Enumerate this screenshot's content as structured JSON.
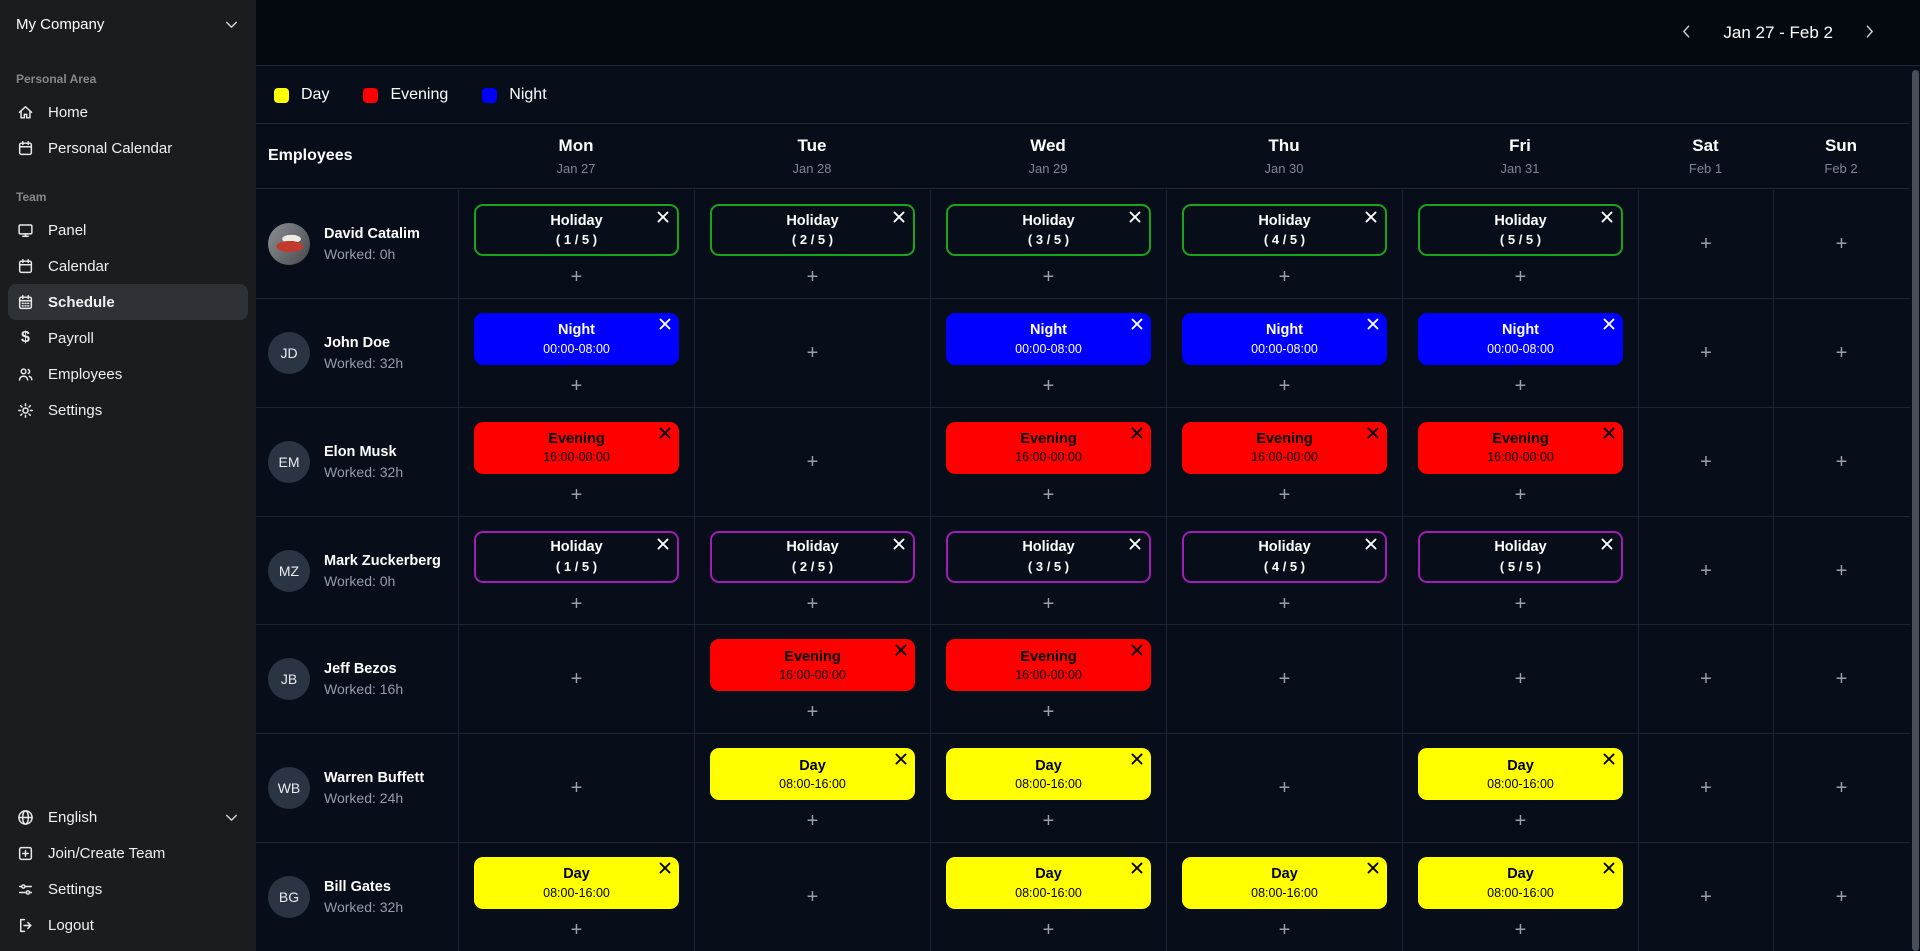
{
  "sidebar": {
    "company": {
      "label": "My Company",
      "icon": "chevron-down-icon"
    },
    "sections": [
      {
        "label": "Personal Area",
        "items": [
          {
            "label": "Home",
            "icon": "home-icon",
            "active": false
          },
          {
            "label": "Personal Calendar",
            "icon": "calendar-icon",
            "active": false
          }
        ]
      },
      {
        "label": "Team",
        "items": [
          {
            "label": "Panel",
            "icon": "monitor-icon",
            "active": false
          },
          {
            "label": "Calendar",
            "icon": "calendar-icon",
            "active": false
          },
          {
            "label": "Schedule",
            "icon": "schedule-icon",
            "active": true
          },
          {
            "label": "Payroll",
            "icon": "dollar-icon",
            "active": false
          },
          {
            "label": "Employees",
            "icon": "people-icon",
            "active": false
          },
          {
            "label": "Settings",
            "icon": "gear-icon",
            "active": false
          }
        ]
      }
    ],
    "footer": [
      {
        "label": "English",
        "icon": "globe-icon",
        "trailing_icon": "chevron-down-icon"
      },
      {
        "label": "Join/Create Team",
        "icon": "add-square-icon"
      },
      {
        "label": "Settings",
        "icon": "sliders-icon"
      },
      {
        "label": "Logout",
        "icon": "logout-icon"
      }
    ]
  },
  "topbar": {
    "date_range": "Jan 27 - Feb 2",
    "prev_icon": "chevron-left-icon",
    "next_icon": "chevron-right-icon"
  },
  "legend": {
    "items": [
      {
        "label": "Day",
        "color": "#ffff00"
      },
      {
        "label": "Evening",
        "color": "#fe0000"
      },
      {
        "label": "Night",
        "color": "#0000fe"
      }
    ]
  },
  "schedule": {
    "employees_header": "Employees",
    "add_label": "+",
    "days": [
      {
        "name": "Mon",
        "date": "Jan 27"
      },
      {
        "name": "Tue",
        "date": "Jan 28"
      },
      {
        "name": "Wed",
        "date": "Jan 29"
      },
      {
        "name": "Thu",
        "date": "Jan 30"
      },
      {
        "name": "Fri",
        "date": "Jan 31"
      },
      {
        "name": "Sat",
        "date": "Feb 1"
      },
      {
        "name": "Sun",
        "date": "Feb 2"
      }
    ],
    "rows": [
      {
        "name": "David Catalim",
        "initials": "",
        "avatar": "photo",
        "worked": "Worked: 0h",
        "cells": [
          {
            "type": "holiday-green",
            "title": "Holiday",
            "subtitle": "( 1 / 5 )"
          },
          {
            "type": "holiday-green",
            "title": "Holiday",
            "subtitle": "( 2 / 5 )"
          },
          {
            "type": "holiday-green",
            "title": "Holiday",
            "subtitle": "( 3 / 5 )"
          },
          {
            "type": "holiday-green",
            "title": "Holiday",
            "subtitle": "( 4 / 5 )"
          },
          {
            "type": "holiday-green",
            "title": "Holiday",
            "subtitle": "( 5 / 5 )"
          },
          null,
          null
        ]
      },
      {
        "name": "John Doe",
        "initials": "JD",
        "avatar": "initials",
        "worked": "Worked: 32h",
        "cells": [
          {
            "type": "night",
            "title": "Night",
            "subtitle": "00:00-08:00"
          },
          null,
          {
            "type": "night",
            "title": "Night",
            "subtitle": "00:00-08:00"
          },
          {
            "type": "night",
            "title": "Night",
            "subtitle": "00:00-08:00"
          },
          {
            "type": "night",
            "title": "Night",
            "subtitle": "00:00-08:00"
          },
          null,
          null
        ]
      },
      {
        "name": "Elon Musk",
        "initials": "EM",
        "avatar": "initials",
        "worked": "Worked: 32h",
        "cells": [
          {
            "type": "evening",
            "title": "Evening",
            "subtitle": "16:00-00:00"
          },
          null,
          {
            "type": "evening",
            "title": "Evening",
            "subtitle": "16:00-00:00"
          },
          {
            "type": "evening",
            "title": "Evening",
            "subtitle": "16:00-00:00"
          },
          {
            "type": "evening",
            "title": "Evening",
            "subtitle": "16:00-00:00"
          },
          null,
          null
        ]
      },
      {
        "name": "Mark Zuckerberg",
        "initials": "MZ",
        "avatar": "initials",
        "worked": "Worked: 0h",
        "cells": [
          {
            "type": "holiday-purple",
            "title": "Holiday",
            "subtitle": "( 1 / 5 )"
          },
          {
            "type": "holiday-purple",
            "title": "Holiday",
            "subtitle": "( 2 / 5 )"
          },
          {
            "type": "holiday-purple",
            "title": "Holiday",
            "subtitle": "( 3 / 5 )"
          },
          {
            "type": "holiday-purple",
            "title": "Holiday",
            "subtitle": "( 4 / 5 )"
          },
          {
            "type": "holiday-purple",
            "title": "Holiday",
            "subtitle": "( 5 / 5 )"
          },
          null,
          null
        ]
      },
      {
        "name": "Jeff Bezos",
        "initials": "JB",
        "avatar": "initials",
        "worked": "Worked: 16h",
        "cells": [
          null,
          {
            "type": "evening",
            "title": "Evening",
            "subtitle": "16:00-00:00"
          },
          {
            "type": "evening",
            "title": "Evening",
            "subtitle": "16:00-00:00"
          },
          null,
          null,
          null,
          null
        ]
      },
      {
        "name": "Warren Buffett",
        "initials": "WB",
        "avatar": "initials",
        "worked": "Worked: 24h",
        "cells": [
          null,
          {
            "type": "day",
            "title": "Day",
            "subtitle": "08:00-16:00"
          },
          {
            "type": "day",
            "title": "Day",
            "subtitle": "08:00-16:00"
          },
          null,
          {
            "type": "day",
            "title": "Day",
            "subtitle": "08:00-16:00"
          },
          null,
          null
        ]
      },
      {
        "name": "Bill Gates",
        "initials": "BG",
        "avatar": "initials",
        "worked": "Worked: 32h",
        "cells": [
          {
            "type": "day",
            "title": "Day",
            "subtitle": "08:00-16:00"
          },
          null,
          {
            "type": "day",
            "title": "Day",
            "subtitle": "08:00-16:00"
          },
          {
            "type": "day",
            "title": "Day",
            "subtitle": "08:00-16:00"
          },
          {
            "type": "day",
            "title": "Day",
            "subtitle": "08:00-16:00"
          },
          null,
          null
        ]
      }
    ]
  },
  "colors": {
    "background": "#070d19",
    "sidebar": "#1a1c20",
    "sidebar_active": "#2e3136",
    "grid_line": "#1d2432",
    "day": "#ffff00",
    "evening": "#fe0000",
    "night": "#0000fe",
    "holiday_green_border": "#1aa31d",
    "holiday_purple_border": "#a01eb4"
  }
}
